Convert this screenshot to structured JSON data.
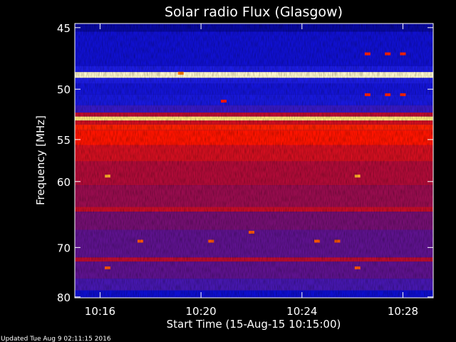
{
  "chart_data": {
    "type": "heatmap",
    "title": "Solar radio Flux (Glasgow)",
    "xlabel": "Start Time (15-Aug-15 10:15:00)",
    "ylabel": "Frequency [MHz]",
    "x_ticks": [
      "10:16",
      "10:20",
      "10:24",
      "10:28"
    ],
    "x_tick_minutes": [
      1,
      5,
      9,
      13
    ],
    "x_range_minutes": [
      0,
      14.2
    ],
    "y_ticks": [
      45,
      50,
      55,
      60,
      70,
      80
    ],
    "y_range_mhz": [
      44.7,
      80.2
    ],
    "y_scale": "reciprocal",
    "colormap": "black-blue-red-yellow-white",
    "frequency_bands": [
      {
        "mhz": [
          44.7,
          45.3
        ],
        "level": 0.12
      },
      {
        "mhz": [
          45.3,
          48.0
        ],
        "level": 0.18
      },
      {
        "mhz": [
          48.0,
          48.5
        ],
        "level": 0.24
      },
      {
        "mhz": [
          48.5,
          49.0
        ],
        "level": 0.97
      },
      {
        "mhz": [
          49.0,
          49.5
        ],
        "level": 0.24
      },
      {
        "mhz": [
          49.5,
          50.5
        ],
        "level": 0.2
      },
      {
        "mhz": [
          50.5,
          51.5
        ],
        "level": 0.22
      },
      {
        "mhz": [
          51.5,
          52.2
        ],
        "level": 0.28
      },
      {
        "mhz": [
          52.2,
          52.6
        ],
        "level": 0.48
      },
      {
        "mhz": [
          52.6,
          53.0
        ],
        "level": 0.92
      },
      {
        "mhz": [
          53.0,
          53.4
        ],
        "level": 0.52
      },
      {
        "mhz": [
          53.4,
          54.0
        ],
        "level": 0.62
      },
      {
        "mhz": [
          54.0,
          55.6
        ],
        "level": 0.6
      },
      {
        "mhz": [
          55.6,
          57.5
        ],
        "level": 0.52
      },
      {
        "mhz": [
          57.5,
          60.5
        ],
        "level": 0.46
      },
      {
        "mhz": [
          60.5,
          63.5
        ],
        "level": 0.42
      },
      {
        "mhz": [
          63.5,
          64.2
        ],
        "level": 0.5
      },
      {
        "mhz": [
          64.2,
          67.0
        ],
        "level": 0.36
      },
      {
        "mhz": [
          67.0,
          71.8
        ],
        "level": 0.33
      },
      {
        "mhz": [
          71.8,
          72.6
        ],
        "level": 0.48
      },
      {
        "mhz": [
          72.6,
          76.0
        ],
        "level": 0.33
      },
      {
        "mhz": [
          76.0,
          78.5
        ],
        "level": 0.3
      },
      {
        "mhz": [
          78.5,
          80.2
        ],
        "level": 0.17
      }
    ],
    "hot_spots": [
      {
        "minute": 1.3,
        "mhz": 59.3,
        "level": 0.82
      },
      {
        "minute": 11.2,
        "mhz": 59.3,
        "level": 0.82
      },
      {
        "minute": 1.3,
        "mhz": 73.8,
        "level": 0.7
      },
      {
        "minute": 11.2,
        "mhz": 73.8,
        "level": 0.7
      },
      {
        "minute": 11.6,
        "mhz": 47.0,
        "level": 0.62
      },
      {
        "minute": 12.4,
        "mhz": 47.0,
        "level": 0.62
      },
      {
        "minute": 13.0,
        "mhz": 47.0,
        "level": 0.62
      },
      {
        "minute": 11.6,
        "mhz": 50.5,
        "level": 0.62
      },
      {
        "minute": 12.4,
        "mhz": 50.5,
        "level": 0.62
      },
      {
        "minute": 13.0,
        "mhz": 50.5,
        "level": 0.62
      },
      {
        "minute": 4.2,
        "mhz": 48.6,
        "level": 0.75
      },
      {
        "minute": 5.9,
        "mhz": 51.1,
        "level": 0.6
      },
      {
        "minute": 2.6,
        "mhz": 68.9,
        "level": 0.7
      },
      {
        "minute": 5.4,
        "mhz": 68.9,
        "level": 0.7
      },
      {
        "minute": 9.6,
        "mhz": 68.9,
        "level": 0.7
      },
      {
        "minute": 10.4,
        "mhz": 68.9,
        "level": 0.7
      },
      {
        "minute": 7.0,
        "mhz": 67.4,
        "level": 0.7
      }
    ]
  },
  "footer": "Updated Tue Aug  9 02:11:15 2016"
}
